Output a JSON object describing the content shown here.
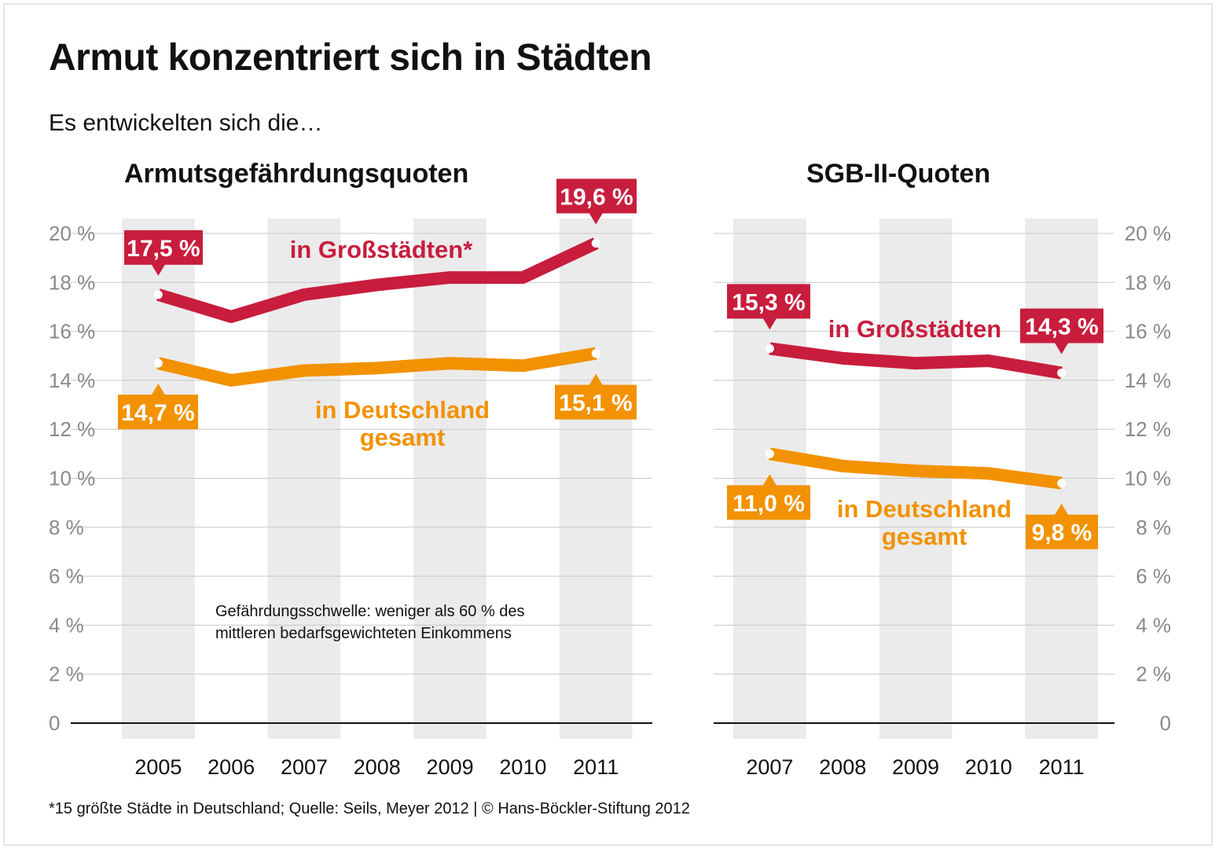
{
  "title": "Armut konzentriert sich in Städten",
  "subtitle": "Es entwickelten sich die…",
  "footnote": "*15 größte Städte in Deutschland; Quelle: Seils, Meyer 2012 | © Hans-Böckler-Stiftung 2012",
  "colors": {
    "red": "#c81d3d",
    "orange": "#f29200",
    "band": "#ebebeb",
    "grid": "#c8c8c8",
    "tick": "#8a8a8a"
  },
  "chart_data": [
    {
      "type": "line",
      "title": "Armutsgefährdungsquoten",
      "x": [
        "2005",
        "2006",
        "2007",
        "2008",
        "2009",
        "2010",
        "2011"
      ],
      "ylim": [
        0,
        20
      ],
      "y_ticks": [
        "0",
        "2 %",
        "4 %",
        "6 %",
        "8 %",
        "10 %",
        "12 %",
        "14 %",
        "16 %",
        "18 %",
        "20 %"
      ],
      "y_axis_side": "left",
      "grid": true,
      "series": [
        {
          "name": "in Großstädten*",
          "color": "#c81d3d",
          "values": [
            17.5,
            16.6,
            17.5,
            17.9,
            18.2,
            18.2,
            19.6
          ],
          "labels": [
            "17,5 %",
            "19,6 %"
          ]
        },
        {
          "name": "in Deutschland gesamt",
          "color": "#f29200",
          "values": [
            14.7,
            14.0,
            14.4,
            14.5,
            14.7,
            14.6,
            15.1
          ],
          "labels": [
            "14,7 %",
            "15,1 %"
          ]
        }
      ],
      "annotation": [
        "Gefährdungsschwelle: weniger als 60 % des",
        "mittleren bedarfsgewichteten Einkommens"
      ]
    },
    {
      "type": "line",
      "title": "SGB-II-Quoten",
      "x": [
        "2007",
        "2008",
        "2009",
        "2010",
        "2011"
      ],
      "ylim": [
        0,
        20
      ],
      "y_ticks": [
        "0",
        "2 %",
        "4 %",
        "6 %",
        "8 %",
        "10 %",
        "12 %",
        "14 %",
        "16 %",
        "18 %",
        "20 %"
      ],
      "y_axis_side": "right",
      "grid": true,
      "series": [
        {
          "name": "in Großstädten",
          "color": "#c81d3d",
          "values": [
            15.3,
            14.9,
            14.7,
            14.8,
            14.3
          ],
          "labels": [
            "15,3 %",
            "14,3 %"
          ]
        },
        {
          "name": "in Deutschland gesamt",
          "color": "#f29200",
          "values": [
            11.0,
            10.5,
            10.3,
            10.2,
            9.8
          ],
          "labels": [
            "11,0 %",
            "9,8 %"
          ]
        }
      ]
    }
  ]
}
